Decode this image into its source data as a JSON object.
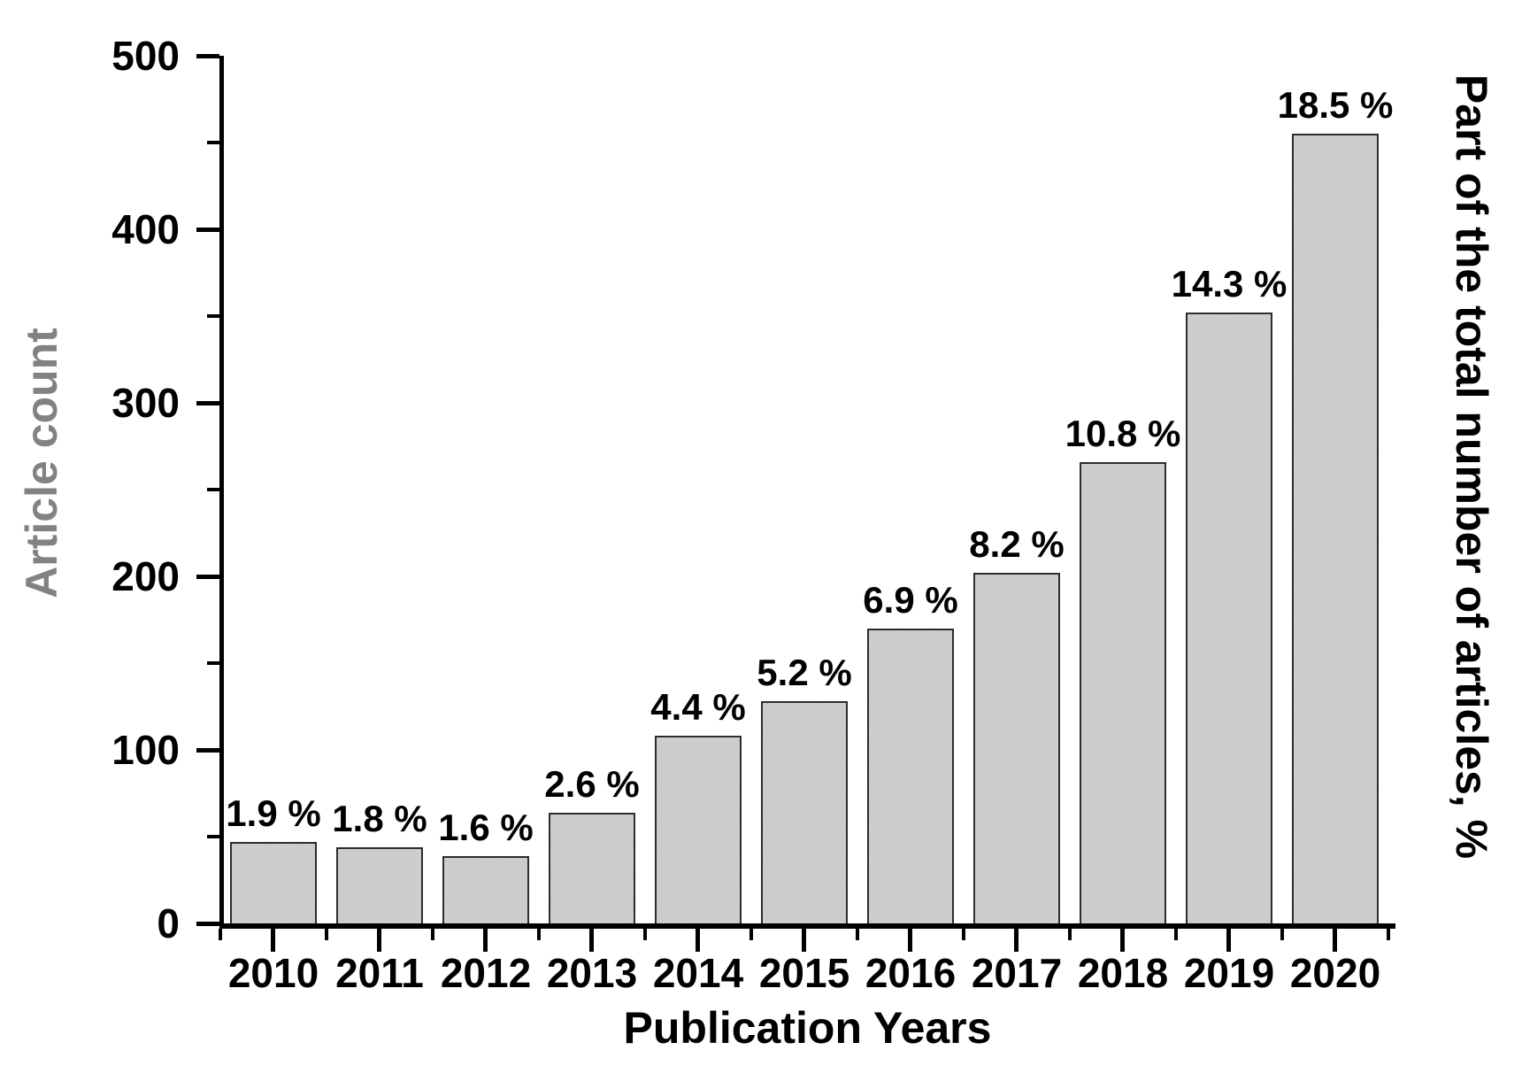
{
  "chart_data": {
    "type": "bar",
    "title": "",
    "xlabel": "Publication Years",
    "ylabel": "Article count",
    "ylabel2": "Part of the total number of articles, %",
    "categories": [
      "2010",
      "2011",
      "2012",
      "2013",
      "2014",
      "2015",
      "2016",
      "2017",
      "2018",
      "2019",
      "2020"
    ],
    "series": [
      {
        "name": "Article count",
        "axis": "left",
        "values": [
          47,
          44,
          39,
          64,
          108,
          128,
          170,
          202,
          266,
          352,
          455
        ]
      },
      {
        "name": "Part of the total number of articles, %",
        "axis": "data-labels",
        "values": [
          1.9,
          1.8,
          1.6,
          2.6,
          4.4,
          5.2,
          6.9,
          8.2,
          10.8,
          14.3,
          18.5
        ]
      }
    ],
    "bar_labels": [
      "1.9 %",
      "1.8 %",
      "1.6 %",
      "2.6 %",
      "4.4 %",
      "5.2 %",
      "6.9 %",
      "8.2 %",
      "10.8 %",
      "14.3 %",
      "18.5 %"
    ],
    "ylim": [
      0,
      500
    ],
    "y_major_ticks": [
      0,
      100,
      200,
      300,
      400,
      500
    ],
    "y_minor_tick_step": 50,
    "grid": false,
    "legend": "none",
    "colors": {
      "bar_fill": "#cbcbcb",
      "bar_border": "#2d2d2d",
      "axis": "#000000",
      "left_axis_title": "#828282",
      "text": "#000000",
      "background": "#ffffff"
    }
  }
}
